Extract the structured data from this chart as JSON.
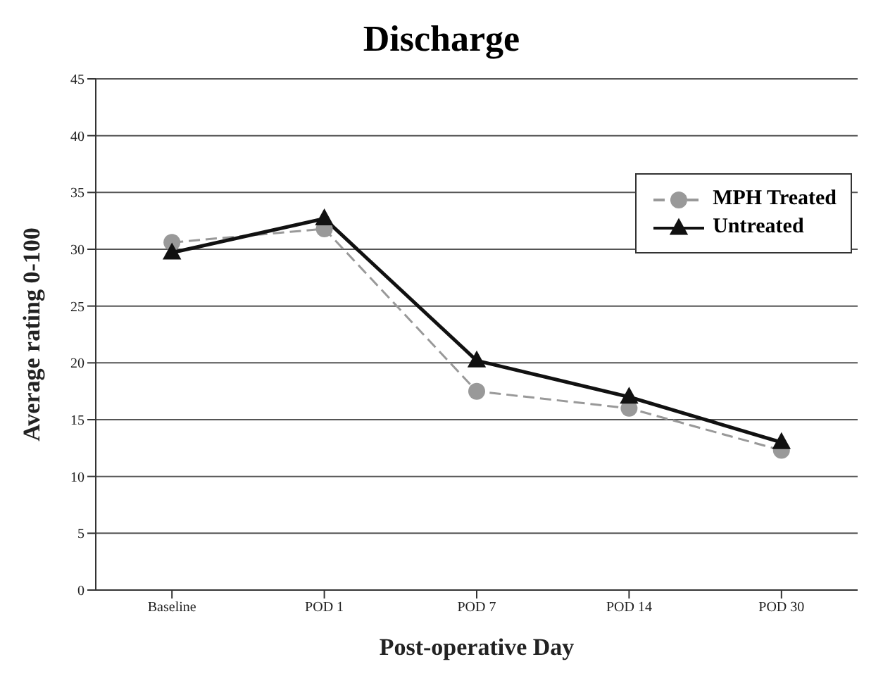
{
  "chart_data": {
    "type": "line",
    "title": "Discharge",
    "xlabel": "Post-operative Day",
    "ylabel": "Average rating 0-100",
    "categories": [
      "Baseline",
      "POD 1",
      "POD 7",
      "POD 14",
      "POD 30"
    ],
    "series": [
      {
        "name": "MPH Treated",
        "color": "#999999",
        "values": [
          30.6,
          31.8,
          17.5,
          16,
          12.3
        ],
        "marker": "circle",
        "line_style": "dashed"
      },
      {
        "name": "Untreated",
        "color": "#111111",
        "values": [
          29.7,
          32.7,
          20.2,
          17,
          13
        ],
        "marker": "triangle",
        "line_style": "solid"
      }
    ],
    "ylim": [
      0,
      45
    ],
    "yticks": [
      0,
      5,
      10,
      15,
      20,
      25,
      30,
      35,
      40,
      45
    ],
    "grid": "y",
    "legend": "top right"
  }
}
